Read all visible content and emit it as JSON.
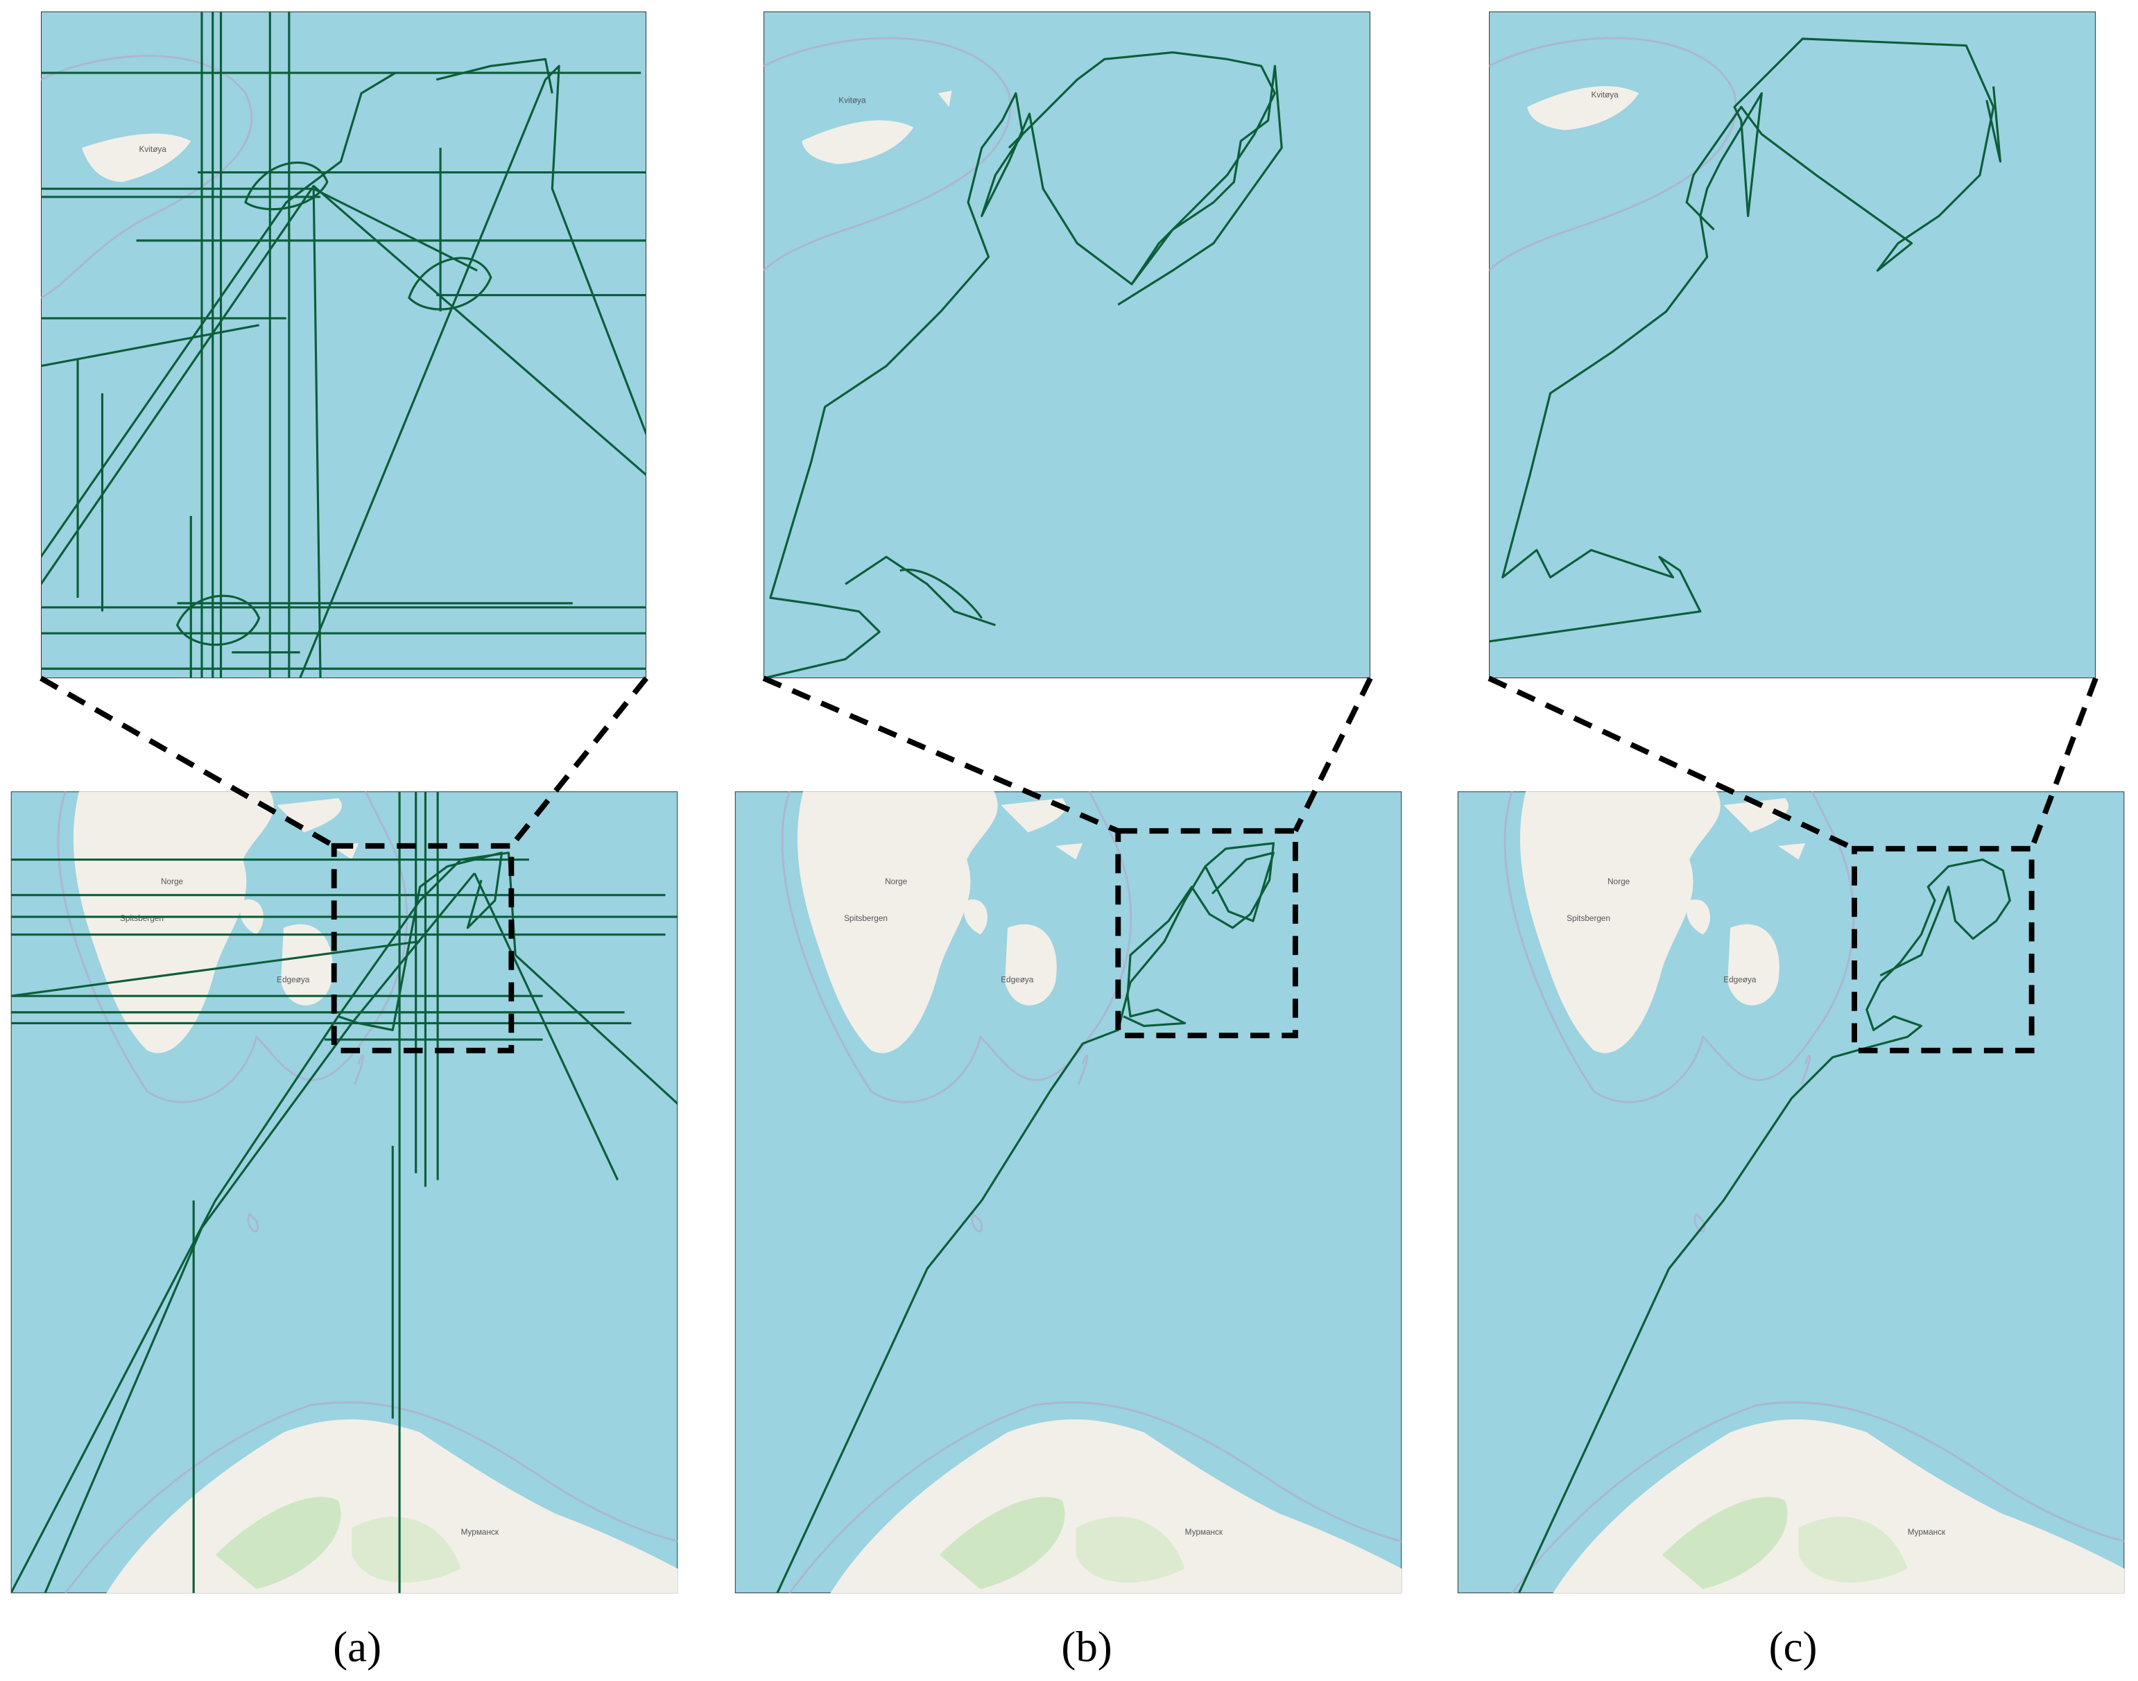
{
  "panels": [
    {
      "label": "(a)"
    },
    {
      "label": "(b)"
    },
    {
      "label": "(c)"
    }
  ],
  "map_labels": {
    "norge": "Norge",
    "spitsbergen": "Spitsbergen",
    "edgeoya": "Edgeøya",
    "murmansk": "Мурманск",
    "kvitoya": "Kvitøya"
  }
}
